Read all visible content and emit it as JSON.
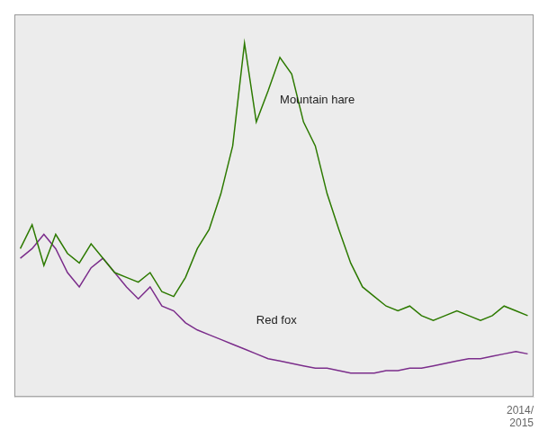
{
  "chart_data": {
    "type": "line",
    "subtitle": "2014/\n2015",
    "x": [
      0,
      1,
      2,
      3,
      4,
      5,
      6,
      7,
      8,
      9,
      10,
      11,
      12,
      13,
      14,
      15,
      16,
      17,
      18,
      19,
      20,
      21,
      22,
      23,
      24,
      25,
      26,
      27,
      28,
      29,
      30,
      31,
      32,
      33,
      34,
      35,
      36,
      37,
      38,
      39,
      40,
      41,
      42,
      43
    ],
    "series": [
      {
        "color": "#2d7a00",
        "values": [
          62,
          72,
          55,
          68,
          60,
          56,
          64,
          58,
          52,
          50,
          48,
          52,
          44,
          42,
          50,
          62,
          70,
          85,
          105,
          148,
          115,
          128,
          142,
          135,
          115,
          105,
          85,
          70,
          56,
          46,
          42,
          38,
          36,
          38,
          34,
          32,
          34,
          36,
          34,
          32,
          34,
          38,
          36,
          34
        ]
      },
      {
        "color": "#7b2d8b",
        "values": [
          58,
          62,
          68,
          62,
          52,
          46,
          54,
          58,
          52,
          46,
          41,
          46,
          38,
          36,
          31,
          28,
          26,
          24,
          22,
          20,
          18,
          16,
          15,
          14,
          13,
          12,
          12,
          11,
          10,
          10,
          10,
          11,
          11,
          12,
          12,
          13,
          14,
          15,
          16,
          16,
          17,
          18,
          19,
          18
        ]
      }
    ],
    "annotations": [
      {
        "text": "Mountain hare",
        "x": 22,
        "y": 128
      },
      {
        "text": "Red fox",
        "x": 20,
        "y": 28
      }
    ],
    "xlim": [
      -0.5,
      43.5
    ],
    "ylim": [
      0,
      160
    ],
    "grid": false,
    "tick_labels": false
  }
}
